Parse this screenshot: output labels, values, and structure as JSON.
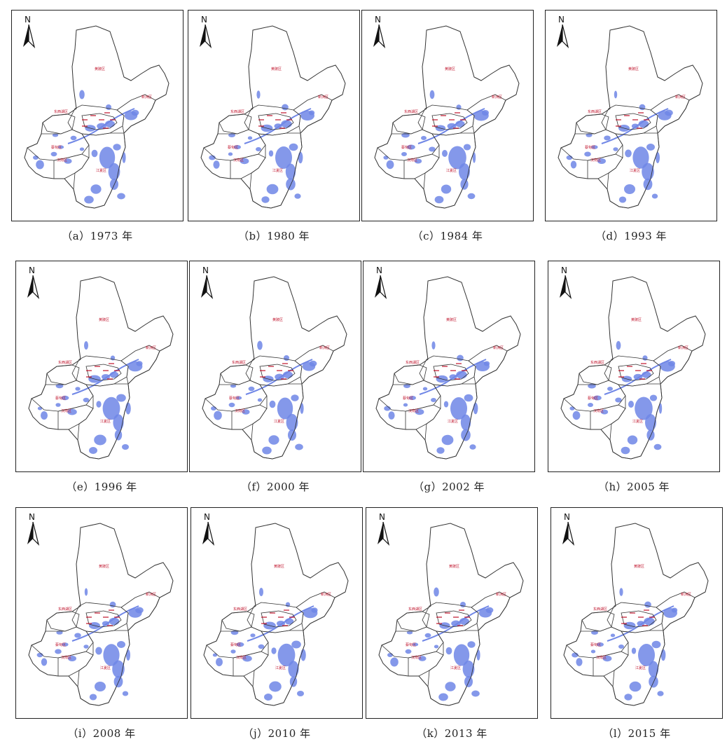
{
  "north_label": "N",
  "district_labels": {
    "north": "黄陂区",
    "northeast": "新洲区",
    "west": "东西湖区",
    "southwest": "蔡甸区",
    "south_west": "汉南区",
    "south": "江夏区"
  },
  "colors": {
    "water": "#6f86e6",
    "boundary": "#333333",
    "label": "#c0142c"
  },
  "panels": [
    {
      "caption": "（a）1973 年"
    },
    {
      "caption": "（b）1980 年"
    },
    {
      "caption": "（c）1984 年"
    },
    {
      "caption": "（d）1993 年"
    },
    {
      "caption": "（e）1996 年"
    },
    {
      "caption": "（f）2000 年"
    },
    {
      "caption": "（g）2002 年"
    },
    {
      "caption": "（h）2005 年"
    },
    {
      "caption": "（i）2008 年"
    },
    {
      "caption": "（j）2010 年"
    },
    {
      "caption": "（k）2013 年"
    },
    {
      "caption": "（l）2015 年"
    }
  ]
}
